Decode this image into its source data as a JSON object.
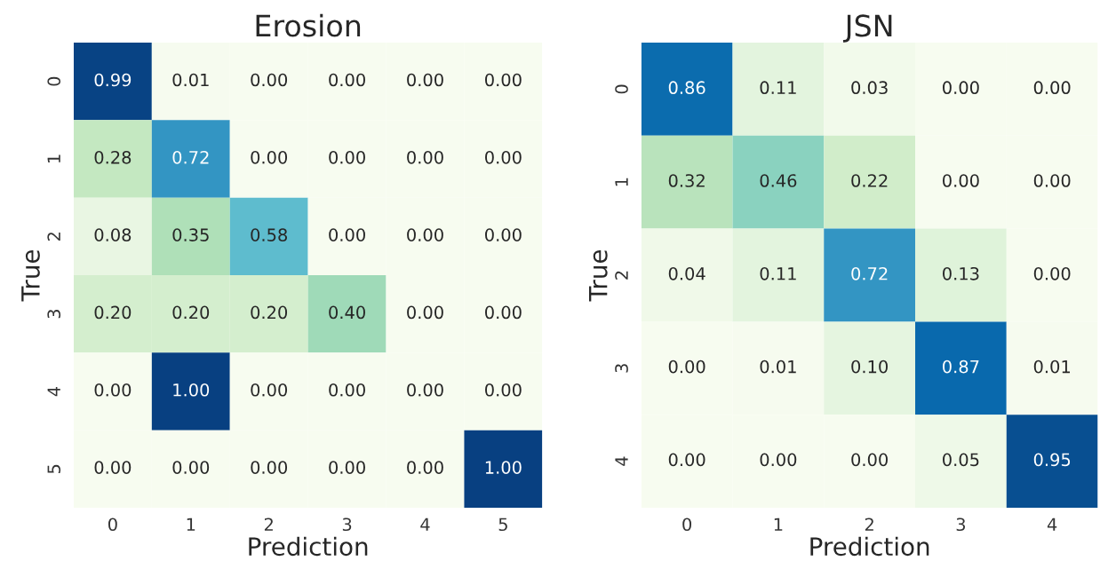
{
  "chart_data": [
    {
      "type": "heatmap",
      "title": "Erosion",
      "xlabel": "Prediction",
      "ylabel": "True",
      "categories": [
        "0",
        "1",
        "2",
        "3",
        "4",
        "5"
      ],
      "y_categories": [
        "0",
        "1",
        "2",
        "3",
        "4",
        "5"
      ],
      "cells": [
        [
          0.99,
          0.01,
          0.0,
          0.0,
          0.0,
          0.0
        ],
        [
          0.28,
          0.72,
          0.0,
          0.0,
          0.0,
          0.0
        ],
        [
          0.08,
          0.35,
          0.58,
          0.0,
          0.0,
          0.0
        ],
        [
          0.2,
          0.2,
          0.2,
          0.4,
          0.0,
          0.0
        ],
        [
          0.0,
          1.0,
          0.0,
          0.0,
          0.0,
          0.0
        ],
        [
          0.0,
          0.0,
          0.0,
          0.0,
          0.0,
          1.0
        ]
      ],
      "cell_labels": [
        [
          "0.99",
          "0.01",
          "0.00",
          "0.00",
          "0.00",
          "0.00"
        ],
        [
          "0.28",
          "0.72",
          "0.00",
          "0.00",
          "0.00",
          "0.00"
        ],
        [
          "0.08",
          "0.35",
          "0.58",
          "0.00",
          "0.00",
          "0.00"
        ],
        [
          "0.20",
          "0.20",
          "0.20",
          "0.40",
          "0.00",
          "0.00"
        ],
        [
          "0.00",
          "1.00",
          "0.00",
          "0.00",
          "0.00",
          "0.00"
        ],
        [
          "0.00",
          "0.00",
          "0.00",
          "0.00",
          "0.00",
          "1.00"
        ]
      ]
    },
    {
      "type": "heatmap",
      "title": "JSN",
      "xlabel": "Prediction",
      "ylabel": "True",
      "categories": [
        "0",
        "1",
        "2",
        "3",
        "4"
      ],
      "y_categories": [
        "0",
        "1",
        "2",
        "3",
        "4"
      ],
      "cells": [
        [
          0.86,
          0.11,
          0.03,
          0.0,
          0.0
        ],
        [
          0.32,
          0.46,
          0.22,
          0.0,
          0.0
        ],
        [
          0.04,
          0.11,
          0.72,
          0.13,
          0.0
        ],
        [
          0.0,
          0.01,
          0.1,
          0.87,
          0.01
        ],
        [
          0.0,
          0.0,
          0.0,
          0.05,
          0.95
        ]
      ],
      "cell_labels": [
        [
          "0.86",
          "0.11",
          "0.03",
          "0.00",
          "0.00"
        ],
        [
          "0.32",
          "0.46",
          "0.22",
          "0.00",
          "0.00"
        ],
        [
          "0.04",
          "0.11",
          "0.72",
          "0.13",
          "0.00"
        ],
        [
          "0.00",
          "0.01",
          "0.10",
          "0.87",
          "0.01"
        ],
        [
          "0.00",
          "0.00",
          "0.00",
          "0.05",
          "0.95"
        ]
      ]
    }
  ]
}
